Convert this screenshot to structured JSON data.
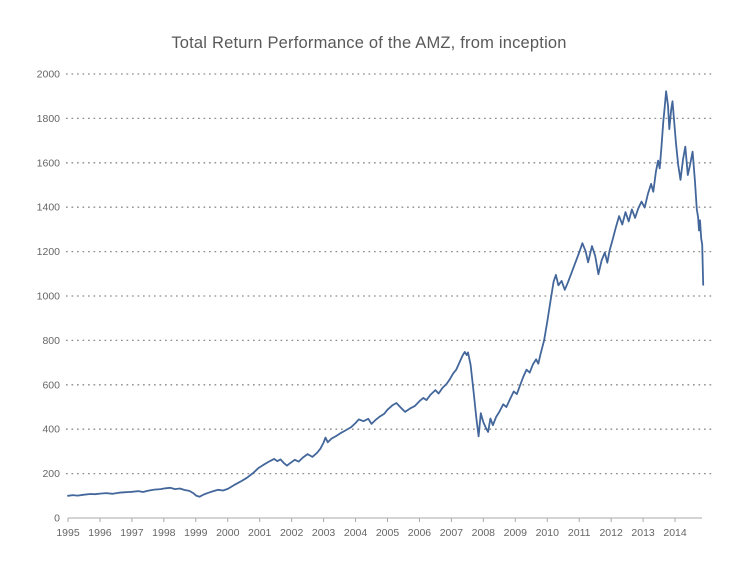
{
  "chart_data": {
    "type": "line",
    "title": "Total Return Performance of the AMZ, from inception",
    "title_color": "#595959",
    "background_color": "#ffffff",
    "grid": {
      "visible": true,
      "style": "dotted",
      "color": "#8c8c8c"
    },
    "axis_color": "#a8a8a8",
    "label_color": "#666666",
    "x_axis": {
      "min": 1995,
      "ticks": [
        1995,
        1996,
        1997,
        1998,
        1999,
        2000,
        2001,
        2002,
        2003,
        2004,
        2005,
        2006,
        2007,
        2008,
        2009,
        2010,
        2011,
        2012,
        2013,
        2014
      ]
    },
    "y_axis": {
      "min": 0,
      "max": 2000,
      "ticks": [
        0,
        200,
        400,
        600,
        800,
        1000,
        1200,
        1400,
        1600,
        1800,
        2000
      ]
    },
    "series": [
      {
        "color": "#44679B",
        "points": [
          [
            1995.0,
            100
          ],
          [
            1995.15,
            103
          ],
          [
            1995.3,
            101
          ],
          [
            1995.5,
            105
          ],
          [
            1995.7,
            108
          ],
          [
            1995.85,
            107
          ],
          [
            1996.0,
            110
          ],
          [
            1996.2,
            112
          ],
          [
            1996.4,
            109
          ],
          [
            1996.6,
            114
          ],
          [
            1996.8,
            116
          ],
          [
            1997.0,
            118
          ],
          [
            1997.2,
            121
          ],
          [
            1997.35,
            117
          ],
          [
            1997.5,
            123
          ],
          [
            1997.7,
            128
          ],
          [
            1997.9,
            130
          ],
          [
            1998.05,
            134
          ],
          [
            1998.2,
            136
          ],
          [
            1998.35,
            130
          ],
          [
            1998.5,
            133
          ],
          [
            1998.65,
            126
          ],
          [
            1998.8,
            122
          ],
          [
            1998.92,
            112
          ],
          [
            1999.02,
            100
          ],
          [
            1999.12,
            96
          ],
          [
            1999.25,
            106
          ],
          [
            1999.4,
            114
          ],
          [
            1999.55,
            121
          ],
          [
            1999.7,
            127
          ],
          [
            1999.85,
            124
          ],
          [
            2000.0,
            131
          ],
          [
            2000.2,
            148
          ],
          [
            2000.4,
            164
          ],
          [
            2000.6,
            181
          ],
          [
            2000.8,
            203
          ],
          [
            2000.95,
            224
          ],
          [
            2001.1,
            238
          ],
          [
            2001.3,
            255
          ],
          [
            2001.45,
            266
          ],
          [
            2001.55,
            256
          ],
          [
            2001.65,
            264
          ],
          [
            2001.75,
            248
          ],
          [
            2001.85,
            236
          ],
          [
            2001.95,
            247
          ],
          [
            2002.1,
            262
          ],
          [
            2002.22,
            254
          ],
          [
            2002.35,
            272
          ],
          [
            2002.5,
            288
          ],
          [
            2002.65,
            275
          ],
          [
            2002.8,
            294
          ],
          [
            2002.9,
            312
          ],
          [
            2003.0,
            340
          ],
          [
            2003.06,
            362
          ],
          [
            2003.13,
            341
          ],
          [
            2003.25,
            358
          ],
          [
            2003.4,
            370
          ],
          [
            2003.55,
            384
          ],
          [
            2003.7,
            396
          ],
          [
            2003.85,
            408
          ],
          [
            2004.0,
            428
          ],
          [
            2004.1,
            444
          ],
          [
            2004.25,
            436
          ],
          [
            2004.4,
            447
          ],
          [
            2004.5,
            424
          ],
          [
            2004.62,
            441
          ],
          [
            2004.75,
            456
          ],
          [
            2004.9,
            470
          ],
          [
            2005.0,
            488
          ],
          [
            2005.15,
            507
          ],
          [
            2005.28,
            518
          ],
          [
            2005.42,
            497
          ],
          [
            2005.55,
            478
          ],
          [
            2005.7,
            493
          ],
          [
            2005.85,
            504
          ],
          [
            2006.0,
            526
          ],
          [
            2006.12,
            541
          ],
          [
            2006.22,
            531
          ],
          [
            2006.35,
            556
          ],
          [
            2006.5,
            576
          ],
          [
            2006.6,
            561
          ],
          [
            2006.72,
            586
          ],
          [
            2006.85,
            604
          ],
          [
            2006.95,
            625
          ],
          [
            2007.05,
            650
          ],
          [
            2007.15,
            668
          ],
          [
            2007.25,
            700
          ],
          [
            2007.35,
            732
          ],
          [
            2007.42,
            748
          ],
          [
            2007.48,
            734
          ],
          [
            2007.52,
            746
          ],
          [
            2007.6,
            690
          ],
          [
            2007.7,
            560
          ],
          [
            2007.78,
            452
          ],
          [
            2007.85,
            368
          ],
          [
            2007.92,
            472
          ],
          [
            2008.0,
            432
          ],
          [
            2008.08,
            406
          ],
          [
            2008.15,
            388
          ],
          [
            2008.22,
            448
          ],
          [
            2008.3,
            418
          ],
          [
            2008.4,
            455
          ],
          [
            2008.5,
            478
          ],
          [
            2008.62,
            512
          ],
          [
            2008.72,
            500
          ],
          [
            2008.85,
            540
          ],
          [
            2008.95,
            570
          ],
          [
            2009.05,
            558
          ],
          [
            2009.15,
            598
          ],
          [
            2009.25,
            636
          ],
          [
            2009.35,
            668
          ],
          [
            2009.45,
            655
          ],
          [
            2009.55,
            692
          ],
          [
            2009.65,
            715
          ],
          [
            2009.72,
            695
          ],
          [
            2009.8,
            745
          ],
          [
            2009.9,
            800
          ],
          [
            2010.0,
            885
          ],
          [
            2010.1,
            975
          ],
          [
            2010.2,
            1065
          ],
          [
            2010.27,
            1095
          ],
          [
            2010.35,
            1048
          ],
          [
            2010.45,
            1068
          ],
          [
            2010.55,
            1028
          ],
          [
            2010.65,
            1062
          ],
          [
            2010.78,
            1112
          ],
          [
            2010.9,
            1158
          ],
          [
            2011.0,
            1196
          ],
          [
            2011.1,
            1238
          ],
          [
            2011.2,
            1202
          ],
          [
            2011.28,
            1152
          ],
          [
            2011.4,
            1225
          ],
          [
            2011.5,
            1180
          ],
          [
            2011.6,
            1098
          ],
          [
            2011.7,
            1160
          ],
          [
            2011.8,
            1196
          ],
          [
            2011.88,
            1150
          ],
          [
            2011.95,
            1205
          ],
          [
            2012.05,
            1255
          ],
          [
            2012.15,
            1310
          ],
          [
            2012.25,
            1360
          ],
          [
            2012.35,
            1322
          ],
          [
            2012.45,
            1378
          ],
          [
            2012.55,
            1336
          ],
          [
            2012.65,
            1390
          ],
          [
            2012.75,
            1352
          ],
          [
            2012.85,
            1395
          ],
          [
            2012.95,
            1425
          ],
          [
            2013.05,
            1398
          ],
          [
            2013.15,
            1460
          ],
          [
            2013.25,
            1505
          ],
          [
            2013.32,
            1470
          ],
          [
            2013.4,
            1560
          ],
          [
            2013.47,
            1610
          ],
          [
            2013.52,
            1575
          ],
          [
            2013.58,
            1680
          ],
          [
            2013.63,
            1780
          ],
          [
            2013.68,
            1855
          ],
          [
            2013.72,
            1922
          ],
          [
            2013.78,
            1858
          ],
          [
            2013.82,
            1752
          ],
          [
            2013.88,
            1840
          ],
          [
            2013.92,
            1877
          ],
          [
            2013.97,
            1790
          ],
          [
            2014.03,
            1687
          ],
          [
            2014.1,
            1590
          ],
          [
            2014.17,
            1523
          ],
          [
            2014.25,
            1615
          ],
          [
            2014.32,
            1673
          ],
          [
            2014.4,
            1545
          ],
          [
            2014.47,
            1592
          ],
          [
            2014.55,
            1650
          ],
          [
            2014.62,
            1520
          ],
          [
            2014.68,
            1390
          ],
          [
            2014.72,
            1355
          ],
          [
            2014.75,
            1295
          ],
          [
            2014.78,
            1341
          ],
          [
            2014.82,
            1258
          ],
          [
            2014.85,
            1232
          ],
          [
            2014.88,
            1050
          ]
        ]
      }
    ]
  }
}
